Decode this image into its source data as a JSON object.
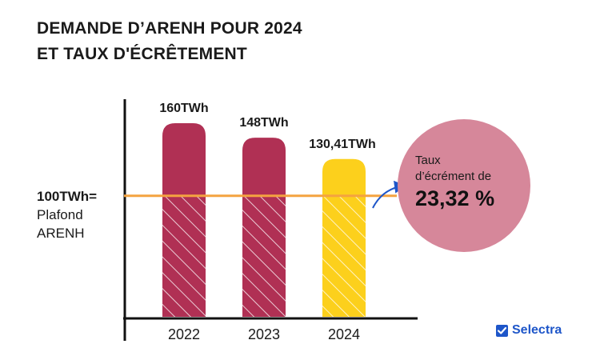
{
  "title": {
    "line1": "DEMANDE D’ARENH POUR 2024",
    "line2": "ET TAUX D'ÉCRÊTEMENT"
  },
  "cap": {
    "value_label": "100TWh=",
    "desc_line1": "Plafond",
    "desc_line2": "ARENH"
  },
  "callout": {
    "text_line1": "Taux",
    "text_line2": "d’écrément de",
    "rate": "23,32 %"
  },
  "brand": {
    "name": "Selectra"
  },
  "colors": {
    "bar_primary": "#b03054",
    "bar_highlight": "#fcd01c",
    "cap_line": "#f4a340",
    "circle": "#d6879a",
    "arrow": "#1e56c9",
    "brand": "#1e56c9"
  },
  "chart_data": {
    "type": "bar",
    "title": "DEMANDE D’ARENH POUR 2024 ET TAUX D'ÉCRÊTEMENT",
    "categories": [
      "2022",
      "2023",
      "2024"
    ],
    "values": [
      160,
      148,
      130.41
    ],
    "value_labels": [
      "160TWh",
      "148TWh",
      "130,41TWh"
    ],
    "unit": "TWh",
    "reference_line": {
      "value": 100,
      "label": "100TWh= Plafond ARENH"
    },
    "highlight_index": 2,
    "annotation": "Taux d’écrément de 23,32 %",
    "xlabel": "",
    "ylabel": "",
    "ylim": [
      0,
      170
    ]
  }
}
